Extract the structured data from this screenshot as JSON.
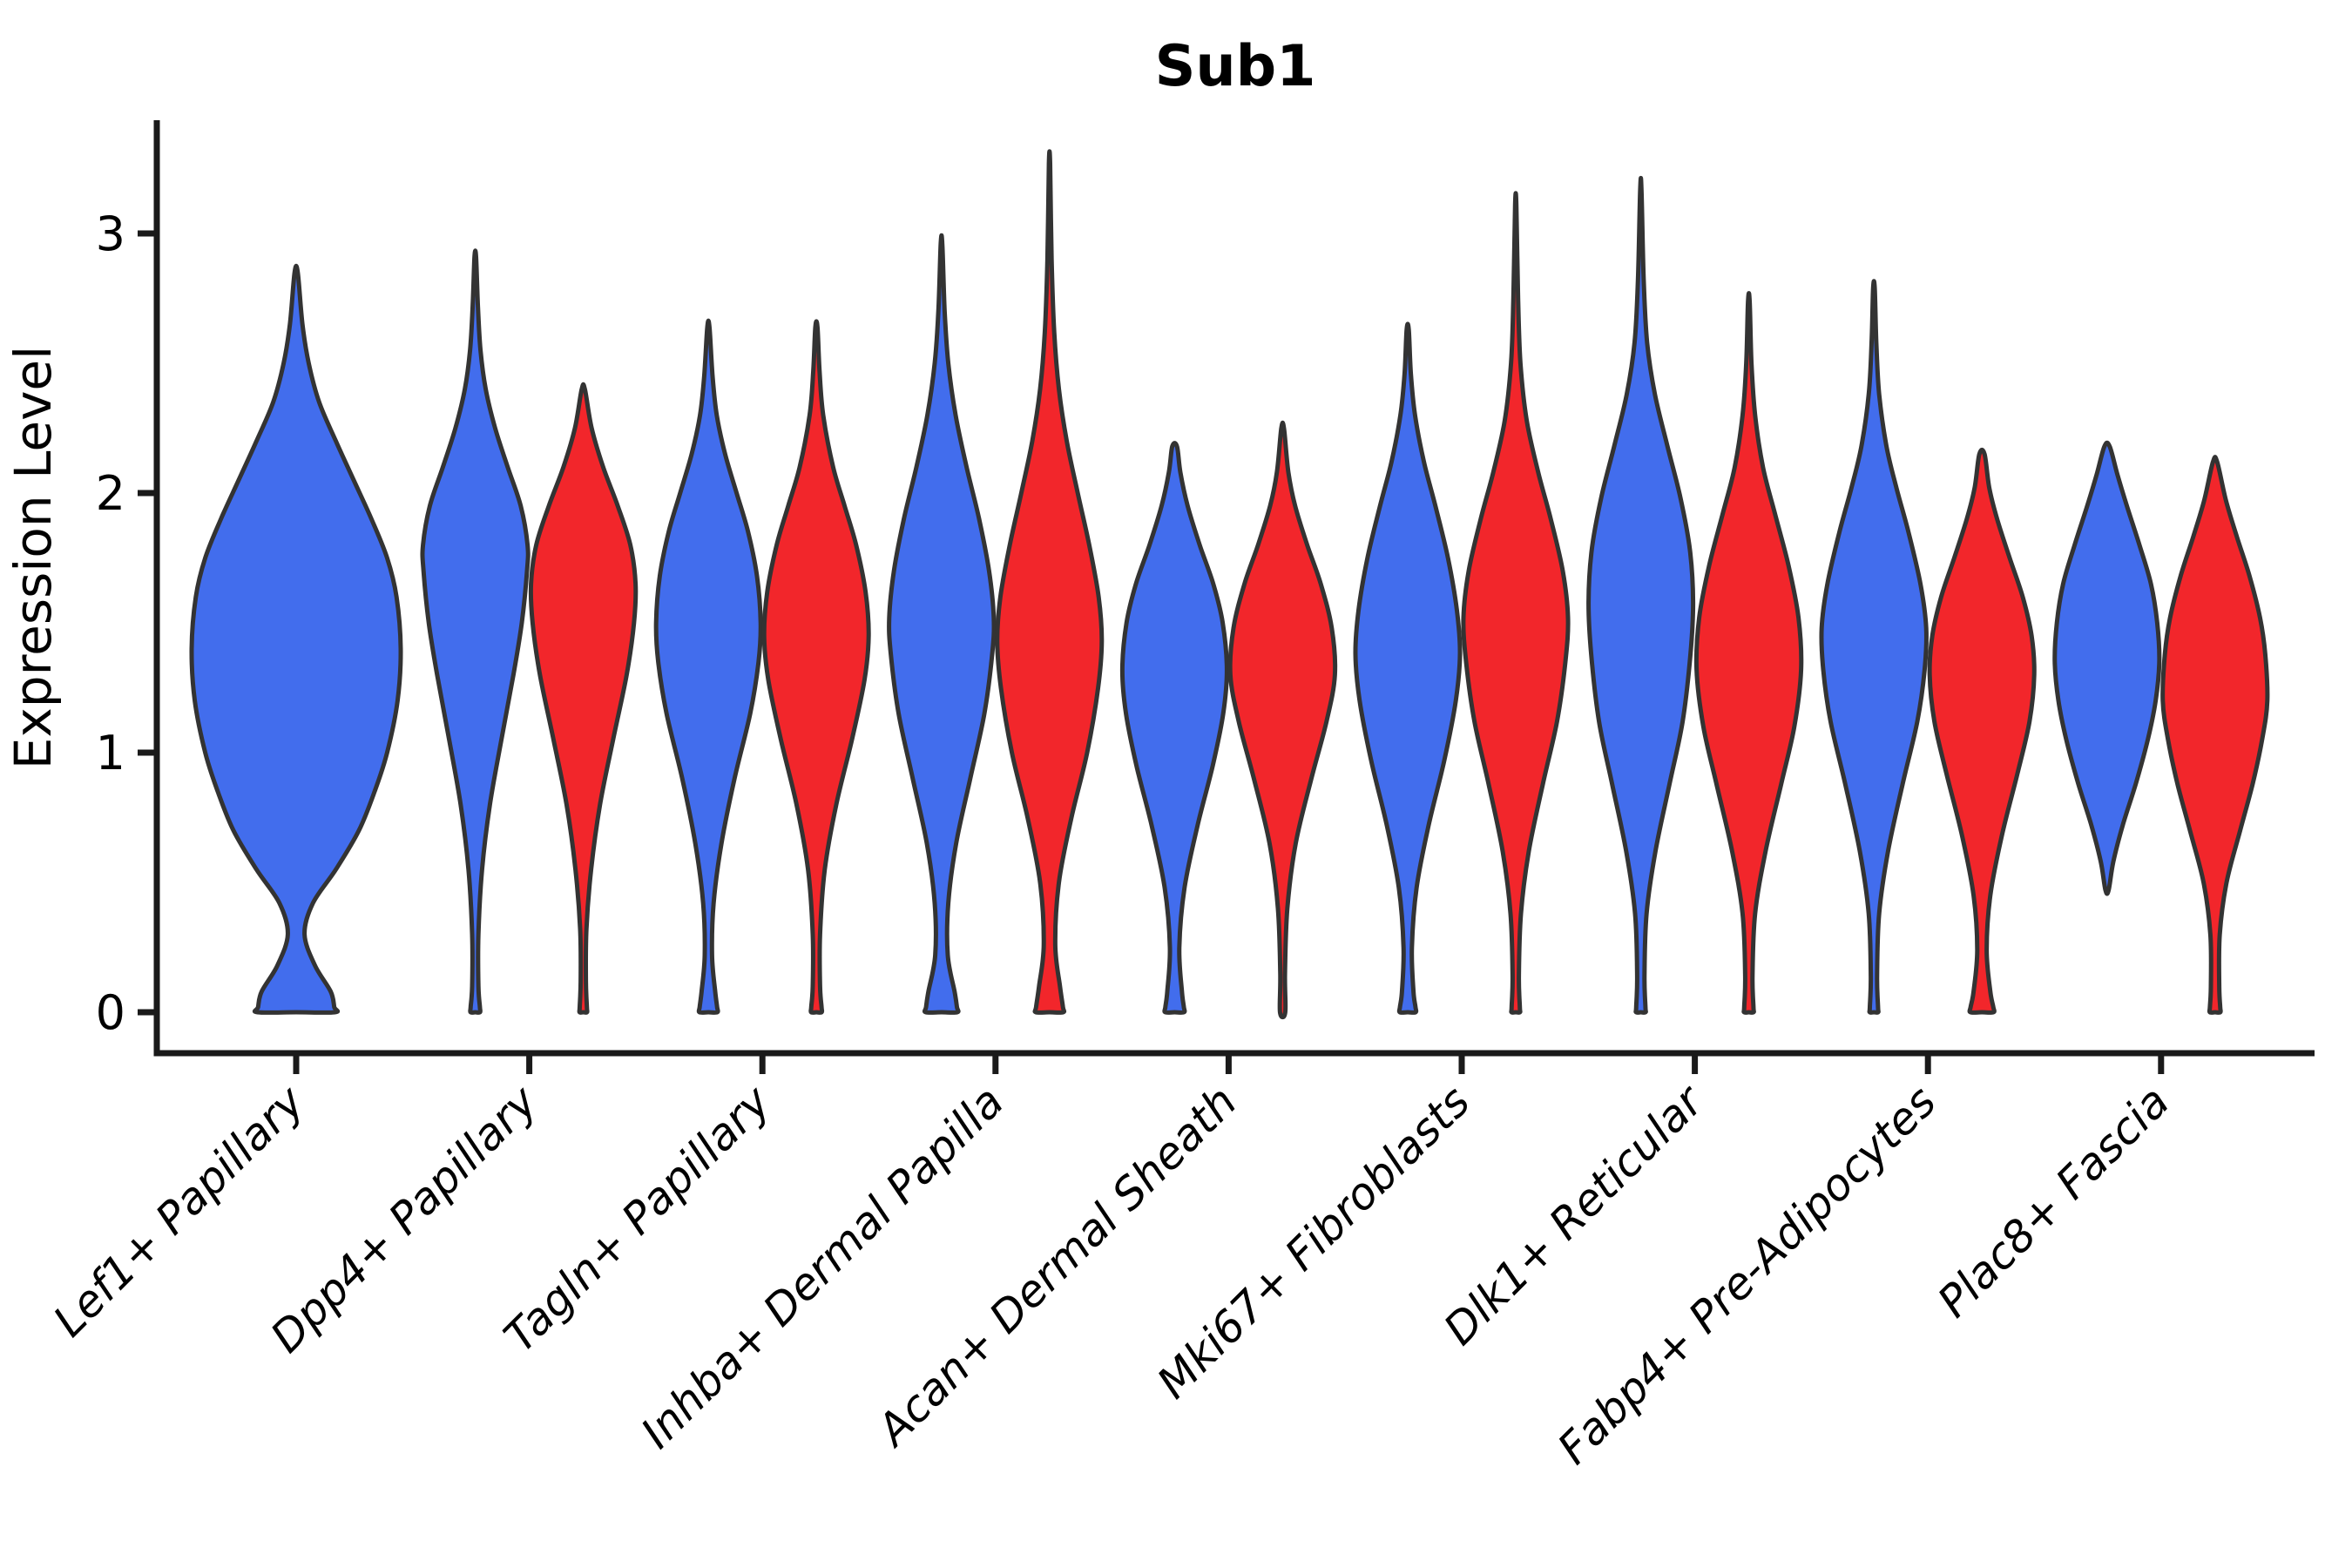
{
  "title": "Sub1",
  "axes": {
    "ylabel": "Expression Level",
    "ytick_labels": [
      "0",
      "1",
      "2",
      "3"
    ]
  },
  "chart_data": {
    "type": "violin",
    "title": "Sub1",
    "xlabel": "",
    "ylabel": "Expression Level",
    "ylim": [
      -0.16,
      3.45
    ],
    "yticks": [
      0,
      1,
      2,
      3
    ],
    "grid": false,
    "legend": "none",
    "categories": [
      "Lef1+ Papillary",
      "Dpp4+ Papillary",
      "Tagln+ Papillary",
      "Inhba+ Dermal Papilla",
      "Acan+ Dermal Sheath",
      "Mki67+ Fibroblasts",
      "Dlk1+ Reticular",
      "Fabp4+ Pre-Adipocytes",
      "Plac8+ Fascia"
    ],
    "colors": {
      "blue": "#426DED",
      "red": "#F2262B",
      "outline": "#333333"
    },
    "violins": [
      {
        "category_index": 0,
        "category": "Lef1+ Papillary",
        "group": "blue",
        "side": "center",
        "min": 0,
        "max": 2.85,
        "profile": [
          [
            0,
            0.37
          ],
          [
            0.08,
            0.33
          ],
          [
            0.18,
            0.18
          ],
          [
            0.3,
            0.08
          ],
          [
            0.42,
            0.16
          ],
          [
            0.55,
            0.38
          ],
          [
            0.7,
            0.6
          ],
          [
            0.85,
            0.75
          ],
          [
            1.0,
            0.87
          ],
          [
            1.2,
            0.97
          ],
          [
            1.4,
            1.0
          ],
          [
            1.6,
            0.96
          ],
          [
            1.75,
            0.87
          ],
          [
            1.9,
            0.72
          ],
          [
            2.05,
            0.55
          ],
          [
            2.2,
            0.38
          ],
          [
            2.35,
            0.22
          ],
          [
            2.5,
            0.12
          ],
          [
            2.65,
            0.06
          ],
          [
            2.85,
            0.015
          ]
        ]
      },
      {
        "category_index": 1,
        "category": "Dpp4+ Papillary",
        "group": "blue",
        "side": "left",
        "min": 0,
        "max": 2.91,
        "profile": [
          [
            0,
            0.09
          ],
          [
            0.1,
            0.06
          ],
          [
            0.3,
            0.06
          ],
          [
            0.55,
            0.13
          ],
          [
            0.8,
            0.28
          ],
          [
            1.05,
            0.5
          ],
          [
            1.3,
            0.73
          ],
          [
            1.5,
            0.89
          ],
          [
            1.7,
            0.99
          ],
          [
            1.8,
            1.0
          ],
          [
            1.95,
            0.87
          ],
          [
            2.1,
            0.62
          ],
          [
            2.25,
            0.38
          ],
          [
            2.4,
            0.2
          ],
          [
            2.55,
            0.1
          ],
          [
            2.72,
            0.05
          ],
          [
            2.91,
            0.015
          ]
        ]
      },
      {
        "category_index": 1,
        "category": "Dpp4+ Papillary",
        "group": "red",
        "side": "right",
        "min": 0,
        "max": 2.4,
        "profile": [
          [
            0,
            0.07
          ],
          [
            0.12,
            0.05
          ],
          [
            0.32,
            0.06
          ],
          [
            0.55,
            0.15
          ],
          [
            0.8,
            0.32
          ],
          [
            1.05,
            0.57
          ],
          [
            1.3,
            0.83
          ],
          [
            1.5,
            0.97
          ],
          [
            1.65,
            1.0
          ],
          [
            1.8,
            0.9
          ],
          [
            1.95,
            0.66
          ],
          [
            2.1,
            0.38
          ],
          [
            2.25,
            0.16
          ],
          [
            2.4,
            0.03
          ]
        ]
      },
      {
        "category_index": 2,
        "category": "Tagln+ Papillary",
        "group": "blue",
        "side": "left",
        "min": 0,
        "max": 2.64,
        "profile": [
          [
            0,
            0.17
          ],
          [
            0.08,
            0.13
          ],
          [
            0.22,
            0.07
          ],
          [
            0.42,
            0.1
          ],
          [
            0.65,
            0.25
          ],
          [
            0.9,
            0.5
          ],
          [
            1.15,
            0.8
          ],
          [
            1.35,
            0.96
          ],
          [
            1.5,
            1.0
          ],
          [
            1.68,
            0.93
          ],
          [
            1.85,
            0.76
          ],
          [
            2.0,
            0.54
          ],
          [
            2.15,
            0.32
          ],
          [
            2.3,
            0.16
          ],
          [
            2.45,
            0.08
          ],
          [
            2.64,
            0.02
          ]
        ]
      },
      {
        "category_index": 2,
        "category": "Tagln+ Papillary",
        "group": "red",
        "side": "right",
        "min": 0,
        "max": 2.64,
        "profile": [
          [
            0,
            0.1
          ],
          [
            0.1,
            0.07
          ],
          [
            0.3,
            0.07
          ],
          [
            0.55,
            0.16
          ],
          [
            0.8,
            0.38
          ],
          [
            1.05,
            0.68
          ],
          [
            1.28,
            0.92
          ],
          [
            1.45,
            1.0
          ],
          [
            1.62,
            0.94
          ],
          [
            1.8,
            0.76
          ],
          [
            1.95,
            0.54
          ],
          [
            2.1,
            0.32
          ],
          [
            2.3,
            0.13
          ],
          [
            2.47,
            0.06
          ],
          [
            2.64,
            0.02
          ]
        ]
      },
      {
        "category_index": 3,
        "category": "Inhba+ Dermal Papilla",
        "group": "blue",
        "side": "left",
        "min": 0,
        "max": 2.96,
        "profile": [
          [
            0,
            0.3
          ],
          [
            0.08,
            0.25
          ],
          [
            0.22,
            0.12
          ],
          [
            0.42,
            0.13
          ],
          [
            0.65,
            0.28
          ],
          [
            0.9,
            0.55
          ],
          [
            1.15,
            0.82
          ],
          [
            1.38,
            0.97
          ],
          [
            1.52,
            1.0
          ],
          [
            1.7,
            0.91
          ],
          [
            1.9,
            0.72
          ],
          [
            2.1,
            0.48
          ],
          [
            2.3,
            0.27
          ],
          [
            2.5,
            0.13
          ],
          [
            2.7,
            0.06
          ],
          [
            2.96,
            0.015
          ]
        ]
      },
      {
        "category_index": 3,
        "category": "Inhba+ Dermal Papilla",
        "group": "red",
        "side": "right",
        "min": 0,
        "max": 3.27,
        "profile": [
          [
            0,
            0.26
          ],
          [
            0.1,
            0.2
          ],
          [
            0.26,
            0.11
          ],
          [
            0.5,
            0.18
          ],
          [
            0.75,
            0.42
          ],
          [
            1.0,
            0.72
          ],
          [
            1.25,
            0.93
          ],
          [
            1.43,
            1.0
          ],
          [
            1.6,
            0.94
          ],
          [
            1.8,
            0.76
          ],
          [
            2.0,
            0.54
          ],
          [
            2.2,
            0.33
          ],
          [
            2.4,
            0.18
          ],
          [
            2.62,
            0.09
          ],
          [
            2.9,
            0.04
          ],
          [
            3.27,
            0.012
          ]
        ]
      },
      {
        "category_index": 4,
        "category": "Acan+ Dermal Sheath",
        "group": "blue",
        "side": "left",
        "min": 0,
        "max": 2.18,
        "profile": [
          [
            0,
            0.18
          ],
          [
            0.08,
            0.14
          ],
          [
            0.25,
            0.09
          ],
          [
            0.48,
            0.19
          ],
          [
            0.72,
            0.44
          ],
          [
            0.95,
            0.73
          ],
          [
            1.15,
            0.93
          ],
          [
            1.32,
            1.0
          ],
          [
            1.5,
            0.92
          ],
          [
            1.65,
            0.74
          ],
          [
            1.8,
            0.48
          ],
          [
            1.95,
            0.25
          ],
          [
            2.08,
            0.11
          ],
          [
            2.18,
            0.045
          ]
        ]
      },
      {
        "category_index": 4,
        "category": "Acan+ Dermal Sheath",
        "group": "red",
        "side": "right",
        "min": 0,
        "max": 2.25,
        "profile": [
          [
            0,
            0.05
          ],
          [
            0.15,
            0.045
          ],
          [
            0.4,
            0.09
          ],
          [
            0.65,
            0.25
          ],
          [
            0.9,
            0.55
          ],
          [
            1.12,
            0.84
          ],
          [
            1.3,
            1.0
          ],
          [
            1.48,
            0.94
          ],
          [
            1.65,
            0.73
          ],
          [
            1.8,
            0.47
          ],
          [
            1.95,
            0.24
          ],
          [
            2.08,
            0.11
          ],
          [
            2.25,
            0.025
          ]
        ]
      },
      {
        "category_index": 5,
        "category": "Mki67+ Fibroblasts",
        "group": "blue",
        "side": "left",
        "min": 0,
        "max": 2.63,
        "profile": [
          [
            0,
            0.15
          ],
          [
            0.08,
            0.11
          ],
          [
            0.25,
            0.08
          ],
          [
            0.48,
            0.17
          ],
          [
            0.72,
            0.4
          ],
          [
            0.97,
            0.7
          ],
          [
            1.2,
            0.92
          ],
          [
            1.38,
            1.0
          ],
          [
            1.55,
            0.94
          ],
          [
            1.75,
            0.77
          ],
          [
            1.95,
            0.53
          ],
          [
            2.12,
            0.31
          ],
          [
            2.3,
            0.14
          ],
          [
            2.46,
            0.06
          ],
          [
            2.63,
            0.02
          ]
        ]
      },
      {
        "category_index": 5,
        "category": "Mki67+ Fibroblasts",
        "group": "red",
        "side": "right",
        "min": 0,
        "max": 3.11,
        "profile": [
          [
            0,
            0.08
          ],
          [
            0.14,
            0.06
          ],
          [
            0.38,
            0.1
          ],
          [
            0.62,
            0.25
          ],
          [
            0.88,
            0.52
          ],
          [
            1.12,
            0.79
          ],
          [
            1.35,
            0.95
          ],
          [
            1.52,
            1.0
          ],
          [
            1.7,
            0.9
          ],
          [
            1.9,
            0.67
          ],
          [
            2.08,
            0.43
          ],
          [
            2.28,
            0.21
          ],
          [
            2.5,
            0.09
          ],
          [
            2.75,
            0.045
          ],
          [
            3.11,
            0.012
          ]
        ]
      },
      {
        "category_index": 6,
        "category": "Dlk1+ Reticular",
        "group": "blue",
        "side": "left",
        "min": 0,
        "max": 3.17,
        "profile": [
          [
            0,
            0.09
          ],
          [
            0.14,
            0.07
          ],
          [
            0.38,
            0.11
          ],
          [
            0.62,
            0.28
          ],
          [
            0.88,
            0.55
          ],
          [
            1.12,
            0.8
          ],
          [
            1.38,
            0.95
          ],
          [
            1.58,
            1.0
          ],
          [
            1.78,
            0.94
          ],
          [
            1.98,
            0.76
          ],
          [
            2.18,
            0.51
          ],
          [
            2.38,
            0.27
          ],
          [
            2.58,
            0.12
          ],
          [
            2.82,
            0.055
          ],
          [
            3.17,
            0.012
          ]
        ]
      },
      {
        "category_index": 6,
        "category": "Dlk1+ Reticular",
        "group": "red",
        "side": "right",
        "min": 0,
        "max": 2.74,
        "profile": [
          [
            0,
            0.09
          ],
          [
            0.14,
            0.07
          ],
          [
            0.38,
            0.12
          ],
          [
            0.62,
            0.32
          ],
          [
            0.88,
            0.62
          ],
          [
            1.1,
            0.87
          ],
          [
            1.32,
            1.0
          ],
          [
            1.52,
            0.95
          ],
          [
            1.72,
            0.76
          ],
          [
            1.92,
            0.5
          ],
          [
            2.1,
            0.27
          ],
          [
            2.3,
            0.12
          ],
          [
            2.5,
            0.05
          ],
          [
            2.74,
            0.015
          ]
        ]
      },
      {
        "category_index": 7,
        "category": "Fabp4+ Pre-Adipocytes",
        "group": "blue",
        "side": "left",
        "min": 0,
        "max": 2.79,
        "profile": [
          [
            0,
            0.08
          ],
          [
            0.14,
            0.06
          ],
          [
            0.38,
            0.1
          ],
          [
            0.62,
            0.27
          ],
          [
            0.88,
            0.55
          ],
          [
            1.12,
            0.83
          ],
          [
            1.32,
            0.97
          ],
          [
            1.48,
            1.0
          ],
          [
            1.65,
            0.89
          ],
          [
            1.85,
            0.66
          ],
          [
            2.02,
            0.43
          ],
          [
            2.18,
            0.24
          ],
          [
            2.38,
            0.1
          ],
          [
            2.58,
            0.045
          ],
          [
            2.79,
            0.015
          ]
        ]
      },
      {
        "category_index": 7,
        "category": "Fabp4+ Pre-Adipocytes",
        "group": "red",
        "side": "right",
        "min": 0,
        "max": 2.15,
        "profile": [
          [
            0,
            0.22
          ],
          [
            0.08,
            0.16
          ],
          [
            0.24,
            0.09
          ],
          [
            0.45,
            0.16
          ],
          [
            0.68,
            0.38
          ],
          [
            0.92,
            0.68
          ],
          [
            1.12,
            0.91
          ],
          [
            1.3,
            1.0
          ],
          [
            1.45,
            0.95
          ],
          [
            1.6,
            0.78
          ],
          [
            1.75,
            0.53
          ],
          [
            1.9,
            0.29
          ],
          [
            2.02,
            0.14
          ],
          [
            2.15,
            0.05
          ]
        ]
      },
      {
        "category_index": 8,
        "category": "Plac8+ Fascia",
        "group": "blue",
        "side": "left",
        "min": 0.47,
        "max": 2.18,
        "profile": [
          [
            0.47,
            0.03
          ],
          [
            0.58,
            0.12
          ],
          [
            0.72,
            0.3
          ],
          [
            0.88,
            0.55
          ],
          [
            1.05,
            0.78
          ],
          [
            1.2,
            0.93
          ],
          [
            1.35,
            1.0
          ],
          [
            1.5,
            0.96
          ],
          [
            1.65,
            0.84
          ],
          [
            1.8,
            0.62
          ],
          [
            1.95,
            0.38
          ],
          [
            2.07,
            0.2
          ],
          [
            2.18,
            0.05
          ]
        ]
      },
      {
        "category_index": 8,
        "category": "Plac8+ Fascia",
        "group": "red",
        "side": "right",
        "min": 0,
        "max": 2.12,
        "profile": [
          [
            0,
            0.1
          ],
          [
            0.1,
            0.08
          ],
          [
            0.3,
            0.09
          ],
          [
            0.5,
            0.22
          ],
          [
            0.7,
            0.48
          ],
          [
            0.88,
            0.72
          ],
          [
            1.05,
            0.9
          ],
          [
            1.2,
            1.0
          ],
          [
            1.38,
            0.96
          ],
          [
            1.52,
            0.86
          ],
          [
            1.68,
            0.66
          ],
          [
            1.83,
            0.42
          ],
          [
            1.97,
            0.21
          ],
          [
            2.12,
            0.04
          ]
        ]
      }
    ]
  }
}
